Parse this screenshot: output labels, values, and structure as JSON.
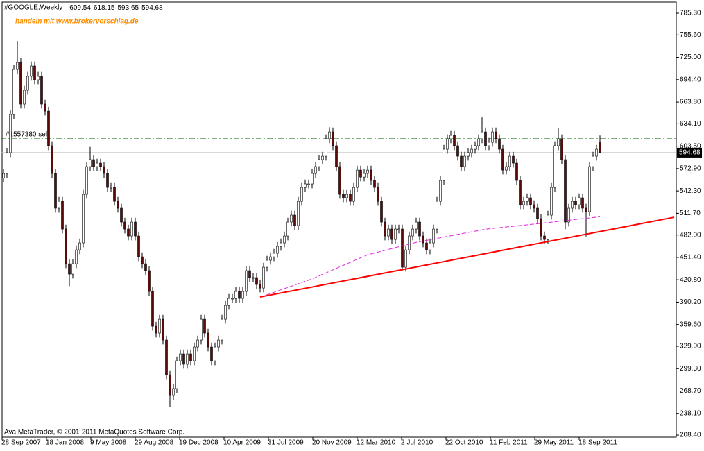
{
  "chart_data": {
    "type": "candlestick",
    "title": "#GOOGLE,Weekly",
    "subtitle": "handeln mit www.brokervorschlag.de",
    "subtitle_color": "#ff8c00",
    "footer": "Ava MetaTrader, © 2001-2011 MetaQuotes Software Corp.",
    "open": [
      560.0,
      566.1,
      594.6,
      646.8,
      708.4,
      717.9,
      661.0,
      680.0,
      699.0,
      713.2,
      694.2,
      699.0,
      661.0,
      651.5,
      604.1,
      566.1,
      518.7,
      528.1,
      490.2,
      442.7,
      428.5,
      442.7,
      461.7,
      471.2,
      537.6,
      575.6,
      585.1,
      575.6,
      580.3,
      575.6,
      566.1,
      547.1,
      547.1,
      528.1,
      518.7,
      499.7,
      490.2,
      480.7,
      499.7,
      480.7,
      452.2,
      442.7,
      433.3,
      404.8,
      357.3,
      347.9,
      366.8,
      338.4,
      290.9,
      262.5,
      272.0,
      309.9,
      319.4,
      305.2,
      319.4,
      309.9,
      328.9,
      338.4,
      366.8,
      347.9,
      328.9,
      309.9,
      328.9,
      338.4,
      366.8,
      385.8,
      395.3,
      395.3,
      404.8,
      395.3,
      404.8,
      433.3,
      423.8,
      423.8,
      414.3,
      409.5,
      438.0,
      447.5,
      452.2,
      457.0,
      466.5,
      471.2,
      480.7,
      499.7,
      509.2,
      494.9,
      528.1,
      547.1,
      551.9,
      551.9,
      566.1,
      575.6,
      585.1,
      589.8,
      613.6,
      623.0,
      604.1,
      575.6,
      537.6,
      532.9,
      537.6,
      528.1,
      547.1,
      570.8,
      561.3,
      566.1,
      570.8,
      556.6,
      547.1,
      528.1,
      499.7,
      480.7,
      490.2,
      475.9,
      490.2,
      490.2,
      438.0,
      461.7,
      480.7,
      490.2,
      499.7,
      480.7,
      471.2,
      461.7,
      471.2,
      490.2,
      528.1,
      556.6,
      599.3,
      613.6,
      618.3,
      604.1,
      589.8,
      575.6,
      589.8,
      594.6,
      599.3,
      604.1,
      613.6,
      623.0,
      604.1,
      608.8,
      623.0,
      613.6,
      599.3,
      570.8,
      575.6,
      589.8,
      580.3,
      556.6,
      523.4,
      528.1,
      532.9,
      523.4,
      518.7,
      504.4,
      480.7,
      475.9,
      509.2,
      547.1,
      604.1,
      613.6,
      585.1,
      499.7,
      518.7,
      528.1,
      523.4,
      532.9,
      518.7,
      514.0,
      575.6,
      589.8,
      609.54
    ],
    "high": [
      572.1,
      600.6,
      652.8,
      714.4,
      747.2,
      723.9,
      686.0,
      705.0,
      719.2,
      719.2,
      705.0,
      705.0,
      667.0,
      657.5,
      610.1,
      572.1,
      534.1,
      534.1,
      496.2,
      448.7,
      448.7,
      467.7,
      477.2,
      543.6,
      581.6,
      602.5,
      591.1,
      586.3,
      586.3,
      581.6,
      572.1,
      553.1,
      553.1,
      534.1,
      524.7,
      505.7,
      496.2,
      505.7,
      505.7,
      486.7,
      458.2,
      448.7,
      439.3,
      410.8,
      363.3,
      372.8,
      372.8,
      344.4,
      296.9,
      278.0,
      315.9,
      325.4,
      325.4,
      325.4,
      325.4,
      334.9,
      344.4,
      372.8,
      372.8,
      353.9,
      334.9,
      334.9,
      344.4,
      372.8,
      391.8,
      401.3,
      401.3,
      410.8,
      410.8,
      410.8,
      439.3,
      439.3,
      429.8,
      429.8,
      420.3,
      444.0,
      453.5,
      458.2,
      463.0,
      472.5,
      477.2,
      486.7,
      505.7,
      515.2,
      515.2,
      534.1,
      553.1,
      557.9,
      557.9,
      572.1,
      581.6,
      591.1,
      595.8,
      619.6,
      629.5,
      629.0,
      610.1,
      581.6,
      543.6,
      543.6,
      543.6,
      553.1,
      576.8,
      576.8,
      572.1,
      576.8,
      576.8,
      562.6,
      553.1,
      534.1,
      505.7,
      496.2,
      496.2,
      496.2,
      496.2,
      496.2,
      467.7,
      486.7,
      496.2,
      505.7,
      505.7,
      486.7,
      477.2,
      477.2,
      496.2,
      534.1,
      562.6,
      605.3,
      619.6,
      624.3,
      624.3,
      610.1,
      595.8,
      595.8,
      600.6,
      605.3,
      610.1,
      619.6,
      642.9,
      629.0,
      614.8,
      629.0,
      629.0,
      619.6,
      605.3,
      581.6,
      595.8,
      595.8,
      586.3,
      562.6,
      534.1,
      538.9,
      538.9,
      529.4,
      524.7,
      510.4,
      486.7,
      515.2,
      553.1,
      610.1,
      628.0,
      619.6,
      591.1,
      524.7,
      534.1,
      534.1,
      538.9,
      538.9,
      524.7,
      581.6,
      595.8,
      605.3,
      618.15
    ],
    "low": [
      554.0,
      560.1,
      588.6,
      640.8,
      702.4,
      655.0,
      655.0,
      674.0,
      693.0,
      688.2,
      688.2,
      655.0,
      645.5,
      598.1,
      560.1,
      512.7,
      512.7,
      484.2,
      436.7,
      412.1,
      422.5,
      436.7,
      455.7,
      465.2,
      531.6,
      569.6,
      569.6,
      569.6,
      569.6,
      560.1,
      541.1,
      541.1,
      522.1,
      512.7,
      493.7,
      484.2,
      474.7,
      474.7,
      474.7,
      446.2,
      436.7,
      427.3,
      398.8,
      351.3,
      341.9,
      341.9,
      332.4,
      284.9,
      247.3,
      256.5,
      266.0,
      303.9,
      299.2,
      299.2,
      303.9,
      303.9,
      322.9,
      332.4,
      341.9,
      322.9,
      303.9,
      303.9,
      322.9,
      332.4,
      360.8,
      379.8,
      389.3,
      389.3,
      389.3,
      389.3,
      398.8,
      417.8,
      417.8,
      408.3,
      403.5,
      403.5,
      432.0,
      441.5,
      446.2,
      451.0,
      460.5,
      465.2,
      474.7,
      493.7,
      488.9,
      488.9,
      522.1,
      541.1,
      545.9,
      545.9,
      560.1,
      569.6,
      579.1,
      583.8,
      607.6,
      598.1,
      569.6,
      531.6,
      526.9,
      526.9,
      522.1,
      522.1,
      541.1,
      555.3,
      555.3,
      560.1,
      550.6,
      541.1,
      522.1,
      493.7,
      474.7,
      474.7,
      469.9,
      469.9,
      484.2,
      433.6,
      432.0,
      455.7,
      474.7,
      484.2,
      474.7,
      465.2,
      455.7,
      455.7,
      465.2,
      484.2,
      522.1,
      550.6,
      593.3,
      607.6,
      598.1,
      583.8,
      569.6,
      569.6,
      583.8,
      588.6,
      593.3,
      598.1,
      607.6,
      598.1,
      598.1,
      602.8,
      607.6,
      593.3,
      564.8,
      564.8,
      569.6,
      574.3,
      550.6,
      517.4,
      517.4,
      522.1,
      517.4,
      512.7,
      498.4,
      474.7,
      469.9,
      469.9,
      503.2,
      541.1,
      598.1,
      579.1,
      490.0,
      493.7,
      512.7,
      517.4,
      517.4,
      512.7,
      480.0,
      508.0,
      569.6,
      583.8,
      593.65
    ],
    "close": [
      566.1,
      594.6,
      646.8,
      708.4,
      717.9,
      661.0,
      680.0,
      699.0,
      713.2,
      694.2,
      699.0,
      661.0,
      651.5,
      604.1,
      566.1,
      518.7,
      528.1,
      490.2,
      442.7,
      428.5,
      442.7,
      461.7,
      471.2,
      537.6,
      575.6,
      585.1,
      575.6,
      580.3,
      575.6,
      566.1,
      547.1,
      547.1,
      528.1,
      518.7,
      499.7,
      490.2,
      480.7,
      499.7,
      480.7,
      452.2,
      442.7,
      433.3,
      404.8,
      357.3,
      347.9,
      366.8,
      338.4,
      290.9,
      262.5,
      272.0,
      309.9,
      319.4,
      305.2,
      319.4,
      309.9,
      328.9,
      338.4,
      366.8,
      347.9,
      328.9,
      309.9,
      328.9,
      338.4,
      366.8,
      385.8,
      395.3,
      395.3,
      404.8,
      395.3,
      404.8,
      433.3,
      423.8,
      423.8,
      414.3,
      409.5,
      438.0,
      447.5,
      452.2,
      457.0,
      466.5,
      471.2,
      480.7,
      499.7,
      509.2,
      494.9,
      528.1,
      547.1,
      551.9,
      551.9,
      566.1,
      575.6,
      585.1,
      589.8,
      613.6,
      623.0,
      604.1,
      575.6,
      537.6,
      532.9,
      537.6,
      528.1,
      547.1,
      570.8,
      561.3,
      566.1,
      570.8,
      556.6,
      547.1,
      528.1,
      499.7,
      480.7,
      490.2,
      475.9,
      490.2,
      490.2,
      438.0,
      461.7,
      480.7,
      490.2,
      499.7,
      480.7,
      471.2,
      461.7,
      471.2,
      490.2,
      528.1,
      556.6,
      599.3,
      613.6,
      618.3,
      604.1,
      589.8,
      575.6,
      589.8,
      594.6,
      599.3,
      604.1,
      613.6,
      623.0,
      604.1,
      608.8,
      623.0,
      613.6,
      599.3,
      570.8,
      575.6,
      589.8,
      580.3,
      556.6,
      523.4,
      528.1,
      532.9,
      523.4,
      518.7,
      504.4,
      480.7,
      475.9,
      509.2,
      547.1,
      604.1,
      613.6,
      585.1,
      499.7,
      518.7,
      528.1,
      523.4,
      532.9,
      518.7,
      514.0,
      575.6,
      589.8,
      599.3,
      594.68
    ],
    "up_color": "#ffffff",
    "down_color": "#5c0a0a",
    "wick_color": "#000000",
    "xlim": [
      -1,
      194
    ],
    "xticks": [
      {
        "value": -0.4,
        "label": "28 Sep 2007"
      },
      {
        "value": 12.4,
        "label": "18 Jan 2008"
      },
      {
        "value": 25.2,
        "label": "9 May 2008"
      },
      {
        "value": 38,
        "label": "29 Aug 2008"
      },
      {
        "value": 50.8,
        "label": "19 Dec 2008"
      },
      {
        "value": 63.6,
        "label": "10 Apr 2009"
      },
      {
        "value": 76.4,
        "label": "31 Jul 2009"
      },
      {
        "value": 89.2,
        "label": "20 Nov 2009"
      },
      {
        "value": 102,
        "label": "12 Mar 2010"
      },
      {
        "value": 114.8,
        "label": "2 Jul 2010"
      },
      {
        "value": 127.6,
        "label": "22 Oct 2010"
      },
      {
        "value": 140.4,
        "label": "11 Feb 2011"
      },
      {
        "value": 153.2,
        "label": "29 May 2011"
      },
      {
        "value": 166,
        "label": "18 Sep 2011"
      }
    ],
    "ylim": [
      205.6,
      800.5
    ],
    "yticks": [
      {
        "value": 785.3,
        "label": "785.30"
      },
      {
        "value": 755.6,
        "label": "755.60"
      },
      {
        "value": 725,
        "label": "725.00"
      },
      {
        "value": 694.4,
        "label": "694.40"
      },
      {
        "value": 663.8,
        "label": "663.80"
      },
      {
        "value": 634.1,
        "label": "634.10"
      },
      {
        "value": 603.5,
        "label": "603.50"
      },
      {
        "value": 572.9,
        "label": "572.90"
      },
      {
        "value": 542.3,
        "label": "542.30"
      },
      {
        "value": 511.7,
        "label": "511.70"
      },
      {
        "value": 482,
        "label": "482.00"
      },
      {
        "value": 451.4,
        "label": "451.40"
      },
      {
        "value": 420.8,
        "label": "420.80"
      },
      {
        "value": 390.2,
        "label": "390.20"
      },
      {
        "value": 359.6,
        "label": "359.60"
      },
      {
        "value": 329.9,
        "label": "329.90"
      },
      {
        "value": 299.3,
        "label": "299.30"
      },
      {
        "value": 268.7,
        "label": "268.70"
      },
      {
        "value": 238.1,
        "label": "238.10"
      },
      {
        "value": 208.4,
        "label": "208.40"
      }
    ],
    "moving_average": {
      "x": [
        74,
        89,
        105,
        119,
        139,
        155,
        172
      ],
      "values": [
        397,
        422,
        455,
        472,
        490,
        498,
        507
      ],
      "color": "#e020e0"
    },
    "trendline": {
      "x": [
        74,
        193.4
      ],
      "values": [
        397.2,
        506.3
      ],
      "color": "#ff0000"
    },
    "order_line": {
      "label": "#1557380 sell",
      "value": 613.6,
      "color": "#006400"
    },
    "price_line_color": "#c0c0c0"
  }
}
